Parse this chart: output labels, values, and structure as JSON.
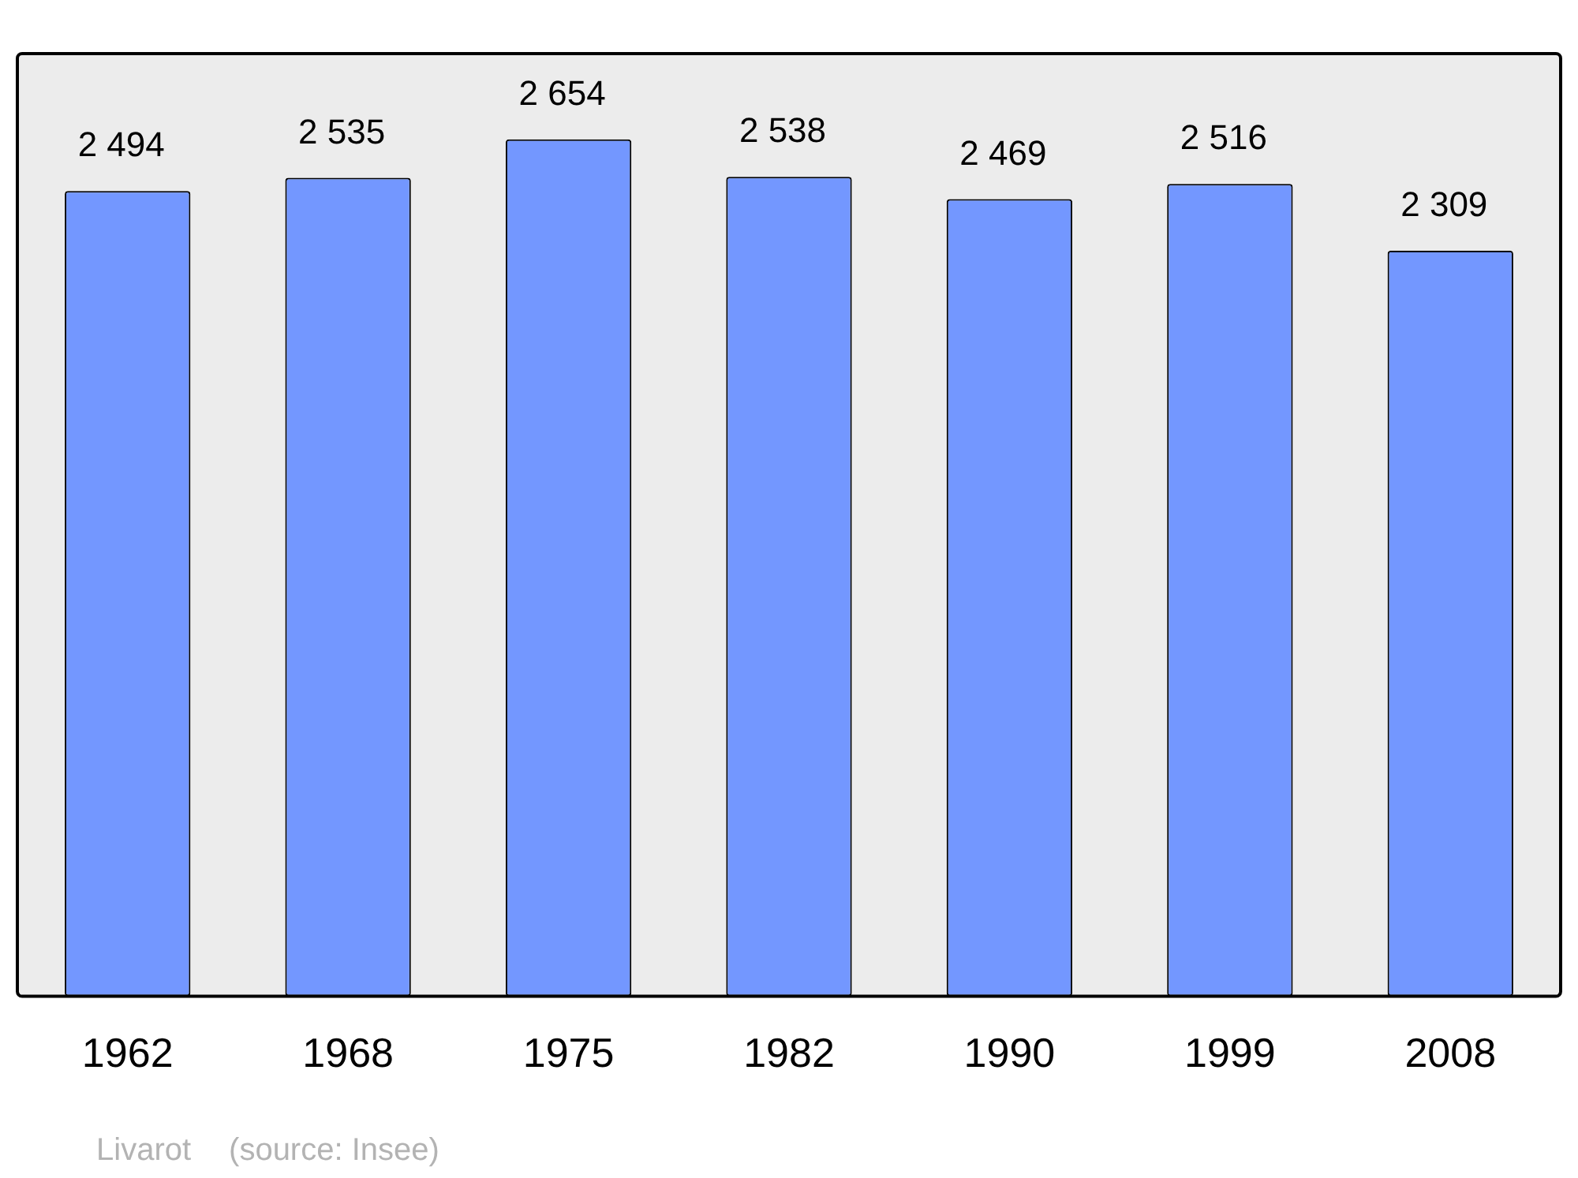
{
  "chart_data": {
    "type": "bar",
    "categories": [
      "1962",
      "1968",
      "1975",
      "1982",
      "1990",
      "1999",
      "2008"
    ],
    "values": [
      2494,
      2535,
      2654,
      2538,
      2469,
      2516,
      2309
    ],
    "value_labels": [
      "2 494",
      "2 535",
      "2 654",
      "2 538",
      "2 469",
      "2 516",
      "2 309"
    ],
    "color": "#7397ff",
    "grid": false,
    "legend": false,
    "annotations": [
      "Livarot",
      "(source: Insee)"
    ]
  }
}
